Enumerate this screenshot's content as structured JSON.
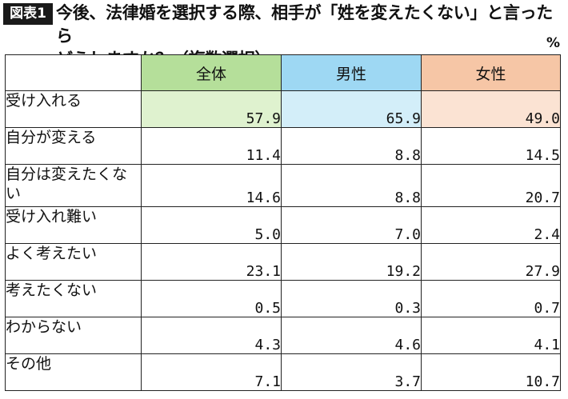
{
  "figure_label": "図表1",
  "title_line1": "今後、法律婚を選択する際、相手が「姓を変えたくない」と言ったら",
  "title_line2": "どうしますか？（複数選択）",
  "unit": "%",
  "colors": {
    "all_header": "#b5df9a",
    "male_header": "#9ed8f3",
    "female_header": "#f6c6a6",
    "all_highlight": "#dff2cf",
    "male_highlight": "#d3eef9",
    "female_highlight": "#fbe3d3"
  },
  "chart_data": {
    "type": "table",
    "columns": [
      "全体",
      "男性",
      "女性"
    ],
    "rows": [
      {
        "label": "受け入れる",
        "values": [
          "57.9",
          "65.9",
          "49.0"
        ]
      },
      {
        "label": "自分が変える",
        "values": [
          "11.4",
          "8.8",
          "14.5"
        ]
      },
      {
        "label": "自分は変えたくない",
        "values": [
          "14.6",
          "8.8",
          "20.7"
        ]
      },
      {
        "label": "受け入れ難い",
        "values": [
          "5.0",
          "7.0",
          "2.4"
        ]
      },
      {
        "label": "よく考えたい",
        "values": [
          "23.1",
          "19.2",
          "27.9"
        ]
      },
      {
        "label": "考えたくない",
        "values": [
          "0.5",
          "0.3",
          "0.7"
        ]
      },
      {
        "label": "わからない",
        "values": [
          "4.3",
          "4.6",
          "4.1"
        ]
      },
      {
        "label": "その他",
        "values": [
          "7.1",
          "3.7",
          "10.7"
        ]
      }
    ]
  }
}
